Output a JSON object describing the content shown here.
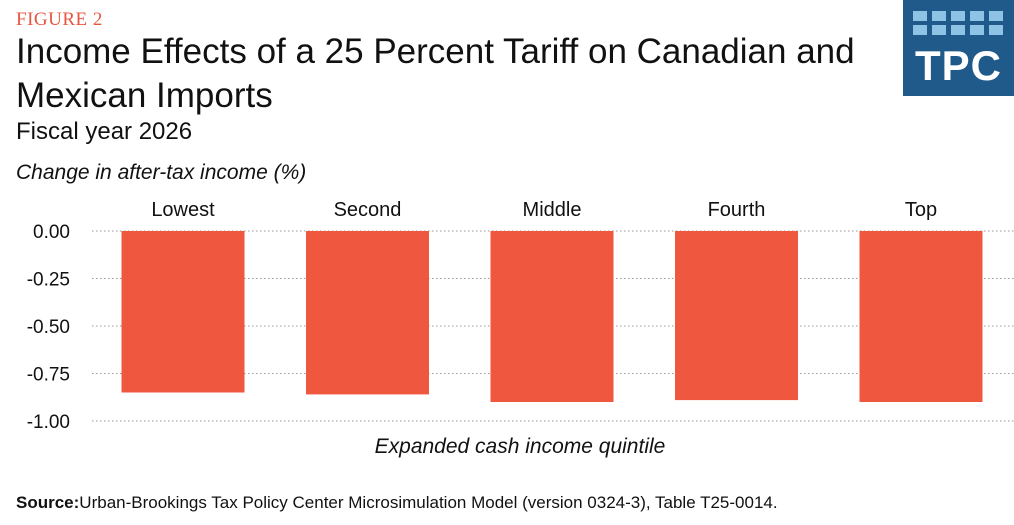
{
  "figure_label": "FIGURE 2",
  "logo": {
    "text": "TPC",
    "color": "#1f5a8a",
    "tile_color": "#8fc3e6"
  },
  "source": {
    "label": "Source:",
    "text": "Urban-Brookings Tax Policy Center Microsimulation Model (version 0324-3), Table T25-0014."
  },
  "chart_data": {
    "type": "bar",
    "title": "Income Effects of a 25 Percent Tariff on Canadian and Mexican Imports",
    "subtitle": "Fiscal year 2026",
    "ylabel": "Change in after-tax income (%)",
    "xlabel": "Expanded cash income quintile",
    "categories": [
      "Lowest",
      "Second",
      "Middle",
      "Fourth",
      "Top"
    ],
    "values": [
      -0.85,
      -0.86,
      -0.9,
      -0.89,
      -0.9
    ],
    "ylim": [
      -1.0,
      0.0
    ],
    "yticks": [
      0.0,
      -0.25,
      -0.5,
      -0.75,
      -1.0
    ],
    "ytick_labels": [
      "0.00",
      "-0.25",
      "-0.50",
      "-0.75",
      "-1.00"
    ],
    "bar_color": "#f0573f",
    "grid": true,
    "legend": "none",
    "category_labels_position": "top"
  }
}
